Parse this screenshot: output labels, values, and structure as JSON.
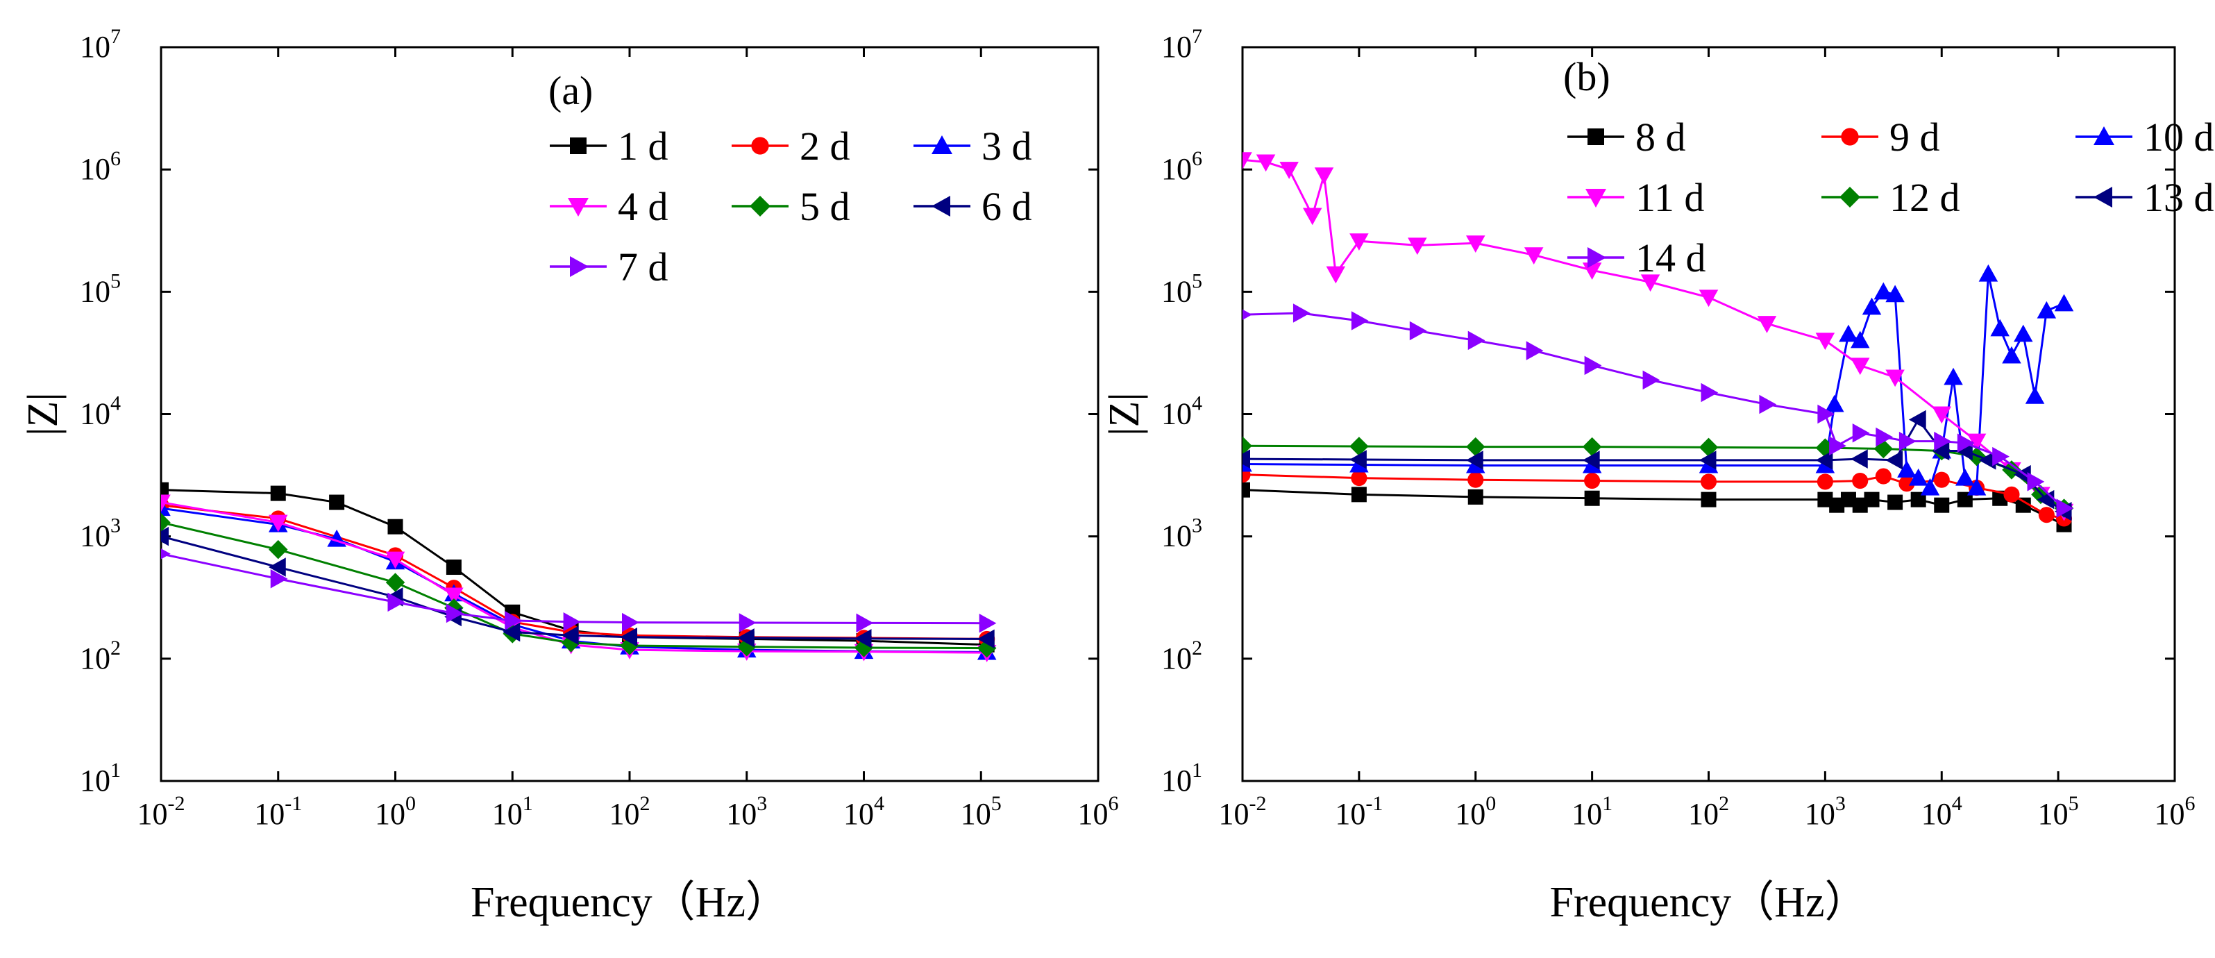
{
  "chart_data": [
    {
      "panel": "a",
      "type": "line",
      "title": "(a)",
      "xlabel": "Frequency（Hz）",
      "ylabel": "|Z|",
      "xscale": "log",
      "yscale": "log",
      "xlim_exp": [
        -2,
        6
      ],
      "ylim_exp": [
        1,
        7
      ],
      "x_ticks": [
        {
          "base": "10",
          "exp": "-2"
        },
        {
          "base": "10",
          "exp": "-1"
        },
        {
          "base": "10",
          "exp": "0"
        },
        {
          "base": "10",
          "exp": "1"
        },
        {
          "base": "10",
          "exp": "2"
        },
        {
          "base": "10",
          "exp": "3"
        },
        {
          "base": "10",
          "exp": "4"
        },
        {
          "base": "10",
          "exp": "5"
        },
        {
          "base": "10",
          "exp": "6"
        }
      ],
      "y_ticks": [
        {
          "base": "10",
          "exp": "1"
        },
        {
          "base": "10",
          "exp": "2"
        },
        {
          "base": "10",
          "exp": "3"
        },
        {
          "base": "10",
          "exp": "4"
        },
        {
          "base": "10",
          "exp": "5"
        },
        {
          "base": "10",
          "exp": "6"
        },
        {
          "base": "10",
          "exp": "7"
        }
      ],
      "legend_columns": 3,
      "legend_position": "top-right",
      "series": [
        {
          "name": "1 d",
          "marker": "square",
          "color": "#000000",
          "points": [
            [
              -2,
              2400
            ],
            [
              -1,
              2250
            ],
            [
              -0.5,
              1900
            ],
            [
              0,
              1200
            ],
            [
              0.5,
              560
            ],
            [
              1,
              240
            ],
            [
              1.5,
              170
            ],
            [
              2,
              150
            ],
            [
              3,
              145
            ],
            [
              4,
              140
            ],
            [
              5.05,
              130
            ]
          ]
        },
        {
          "name": "2 d",
          "marker": "circle",
          "color": "#ff0000",
          "points": [
            [
              -2,
              1800
            ],
            [
              -1,
              1400
            ],
            [
              0,
              700
            ],
            [
              0.5,
              380
            ],
            [
              1,
              200
            ],
            [
              1.5,
              165
            ],
            [
              2,
              155
            ],
            [
              3,
              150
            ],
            [
              4,
              148
            ],
            [
              5.05,
              145
            ]
          ]
        },
        {
          "name": "3 d",
          "marker": "triangle-up",
          "color": "#0000ff",
          "points": [
            [
              -2,
              1700
            ],
            [
              -1,
              1250
            ],
            [
              -0.5,
              950
            ],
            [
              0,
              620
            ],
            [
              0.5,
              340
            ],
            [
              1,
              190
            ],
            [
              1.5,
              140
            ],
            [
              2,
              125
            ],
            [
              3,
              118
            ],
            [
              4,
              115
            ],
            [
              5.05,
              113
            ]
          ]
        },
        {
          "name": "4 d",
          "marker": "triangle-down",
          "color": "#ff00ff",
          "points": [
            [
              -2,
              1900
            ],
            [
              -1,
              1300
            ],
            [
              0,
              650
            ],
            [
              0.5,
              330
            ],
            [
              1,
              180
            ],
            [
              1.5,
              130
            ],
            [
              2,
              118
            ],
            [
              3,
              115
            ],
            [
              4,
              114
            ],
            [
              5.05,
              112
            ]
          ]
        },
        {
          "name": "5 d",
          "marker": "diamond",
          "color": "#008000",
          "points": [
            [
              -2,
              1300
            ],
            [
              -1,
              780
            ],
            [
              0,
              420
            ],
            [
              0.5,
              260
            ],
            [
              1,
              160
            ],
            [
              1.5,
              135
            ],
            [
              2,
              128
            ],
            [
              3,
              125
            ],
            [
              4,
              123
            ],
            [
              5.05,
              122
            ]
          ]
        },
        {
          "name": "6 d",
          "marker": "triangle-left",
          "color": "#000080",
          "points": [
            [
              -2,
              1000
            ],
            [
              -1,
              560
            ],
            [
              0,
              320
            ],
            [
              0.5,
              220
            ],
            [
              1,
              165
            ],
            [
              1.5,
              155
            ],
            [
              2,
              150
            ],
            [
              3,
              148
            ],
            [
              4,
              146
            ],
            [
              5.05,
              145
            ]
          ]
        },
        {
          "name": "7 d",
          "marker": "triangle-right",
          "color": "#8b00ff",
          "points": [
            [
              -2,
              720
            ],
            [
              -1,
              450
            ],
            [
              0,
              290
            ],
            [
              0.5,
              235
            ],
            [
              1,
              205
            ],
            [
              1.5,
              200
            ],
            [
              2,
              198
            ],
            [
              3,
              197
            ],
            [
              4,
              196
            ],
            [
              5.05,
              195
            ]
          ]
        }
      ]
    },
    {
      "panel": "b",
      "type": "line",
      "title": "(b)",
      "xlabel": "Frequency（Hz）",
      "ylabel": "|Z|",
      "xscale": "log",
      "yscale": "log",
      "xlim_exp": [
        -2,
        6
      ],
      "ylim_exp": [
        1,
        7
      ],
      "x_ticks": [
        {
          "base": "10",
          "exp": "-2"
        },
        {
          "base": "10",
          "exp": "-1"
        },
        {
          "base": "10",
          "exp": "0"
        },
        {
          "base": "10",
          "exp": "1"
        },
        {
          "base": "10",
          "exp": "2"
        },
        {
          "base": "10",
          "exp": "3"
        },
        {
          "base": "10",
          "exp": "4"
        },
        {
          "base": "10",
          "exp": "5"
        },
        {
          "base": "10",
          "exp": "6"
        }
      ],
      "y_ticks": [
        {
          "base": "10",
          "exp": "1"
        },
        {
          "base": "10",
          "exp": "2"
        },
        {
          "base": "10",
          "exp": "3"
        },
        {
          "base": "10",
          "exp": "4"
        },
        {
          "base": "10",
          "exp": "5"
        },
        {
          "base": "10",
          "exp": "6"
        },
        {
          "base": "10",
          "exp": "7"
        }
      ],
      "legend_columns": 3,
      "legend_position": "top",
      "series": [
        {
          "name": "8 d",
          "marker": "square",
          "color": "#000000",
          "points": [
            [
              -2,
              2400
            ],
            [
              -1,
              2200
            ],
            [
              0,
              2100
            ],
            [
              1,
              2050
            ],
            [
              2,
              2000
            ],
            [
              3,
              2000
            ],
            [
              3.1,
              1800
            ],
            [
              3.2,
              2000
            ],
            [
              3.3,
              1800
            ],
            [
              3.4,
              2000
            ],
            [
              3.6,
              1900
            ],
            [
              3.8,
              2000
            ],
            [
              4,
              1800
            ],
            [
              4.2,
              2000
            ],
            [
              4.5,
              2050
            ],
            [
              4.7,
              1800
            ],
            [
              5.05,
              1250
            ]
          ]
        },
        {
          "name": "9 d",
          "marker": "circle",
          "color": "#ff0000",
          "points": [
            [
              -2,
              3200
            ],
            [
              -1,
              3000
            ],
            [
              0,
              2900
            ],
            [
              1,
              2850
            ],
            [
              2,
              2800
            ],
            [
              3,
              2800
            ],
            [
              3.3,
              2850
            ],
            [
              3.5,
              3100
            ],
            [
              3.7,
              2700
            ],
            [
              4,
              2900
            ],
            [
              4.3,
              2500
            ],
            [
              4.6,
              2200
            ],
            [
              4.9,
              1500
            ],
            [
              5.05,
              1400
            ]
          ]
        },
        {
          "name": "10 d",
          "marker": "triangle-up",
          "color": "#0000ff",
          "points": [
            [
              -2,
              3900
            ],
            [
              -1,
              3850
            ],
            [
              0,
              3800
            ],
            [
              1,
              3800
            ],
            [
              2,
              3800
            ],
            [
              3,
              3800
            ],
            [
              3.08,
              12000
            ],
            [
              3.2,
              45000
            ],
            [
              3.3,
              40000
            ],
            [
              3.4,
              75000
            ],
            [
              3.5,
              100000
            ],
            [
              3.6,
              95000
            ],
            [
              3.7,
              3500
            ],
            [
              3.8,
              3000
            ],
            [
              3.9,
              2500
            ],
            [
              4,
              5000
            ],
            [
              4.1,
              20000
            ],
            [
              4.2,
              3000
            ],
            [
              4.3,
              2500
            ],
            [
              4.4,
              140000
            ],
            [
              4.5,
              50000
            ],
            [
              4.6,
              30000
            ],
            [
              4.7,
              45000
            ],
            [
              4.8,
              14000
            ],
            [
              4.9,
              70000
            ],
            [
              5.05,
              80000
            ]
          ]
        },
        {
          "name": "11 d",
          "marker": "triangle-down",
          "color": "#ff00ff",
          "points": [
            [
              -2,
              1200000
            ],
            [
              -1.8,
              1150000
            ],
            [
              -1.6,
              1000000
            ],
            [
              -1.4,
              420000
            ],
            [
              -1.3,
              900000
            ],
            [
              -1.2,
              140000
            ],
            [
              -1,
              260000
            ],
            [
              -0.5,
              240000
            ],
            [
              0,
              250000
            ],
            [
              0.5,
              200000
            ],
            [
              1,
              150000
            ],
            [
              1.5,
              120000
            ],
            [
              2,
              90000
            ],
            [
              2.5,
              55000
            ],
            [
              3,
              40000
            ],
            [
              3.3,
              25000
            ],
            [
              3.6,
              20000
            ],
            [
              4,
              10000
            ],
            [
              4.3,
              6000
            ],
            [
              4.6,
              3500
            ],
            [
              4.85,
              2200
            ],
            [
              5.05,
              1600
            ]
          ]
        },
        {
          "name": "12 d",
          "marker": "diamond",
          "color": "#008000",
          "points": [
            [
              -2,
              5500
            ],
            [
              -1,
              5450
            ],
            [
              0,
              5400
            ],
            [
              1,
              5400
            ],
            [
              2,
              5350
            ],
            [
              3,
              5300
            ],
            [
              3.5,
              5200
            ],
            [
              4,
              5000
            ],
            [
              4.3,
              4500
            ],
            [
              4.6,
              3500
            ],
            [
              4.85,
              2200
            ],
            [
              5.05,
              1700
            ]
          ]
        },
        {
          "name": "13 d",
          "marker": "triangle-left",
          "color": "#000080",
          "points": [
            [
              -2,
              4300
            ],
            [
              -1,
              4250
            ],
            [
              0,
              4200
            ],
            [
              1,
              4200
            ],
            [
              2,
              4200
            ],
            [
              3,
              4200
            ],
            [
              3.3,
              4300
            ],
            [
              3.6,
              4200
            ],
            [
              3.8,
              9000
            ],
            [
              4,
              5000
            ],
            [
              4.2,
              5000
            ],
            [
              4.4,
              4200
            ],
            [
              4.7,
              3200
            ],
            [
              4.9,
              2000
            ],
            [
              5.05,
              1600
            ]
          ]
        },
        {
          "name": "14 d",
          "marker": "triangle-right",
          "color": "#8b00ff",
          "points": [
            [
              -2,
              65000
            ],
            [
              -1.5,
              67000
            ],
            [
              -1,
              58000
            ],
            [
              -0.5,
              48000
            ],
            [
              0,
              40000
            ],
            [
              0.5,
              33000
            ],
            [
              1,
              25000
            ],
            [
              1.5,
              19000
            ],
            [
              2,
              15000
            ],
            [
              2.5,
              12000
            ],
            [
              3,
              10000
            ],
            [
              3.1,
              5500
            ],
            [
              3.3,
              7000
            ],
            [
              3.5,
              6500
            ],
            [
              3.7,
              6000
            ],
            [
              4,
              6000
            ],
            [
              4.2,
              5800
            ],
            [
              4.5,
              4500
            ],
            [
              4.8,
              2800
            ],
            [
              5.05,
              1700
            ]
          ]
        }
      ]
    }
  ]
}
